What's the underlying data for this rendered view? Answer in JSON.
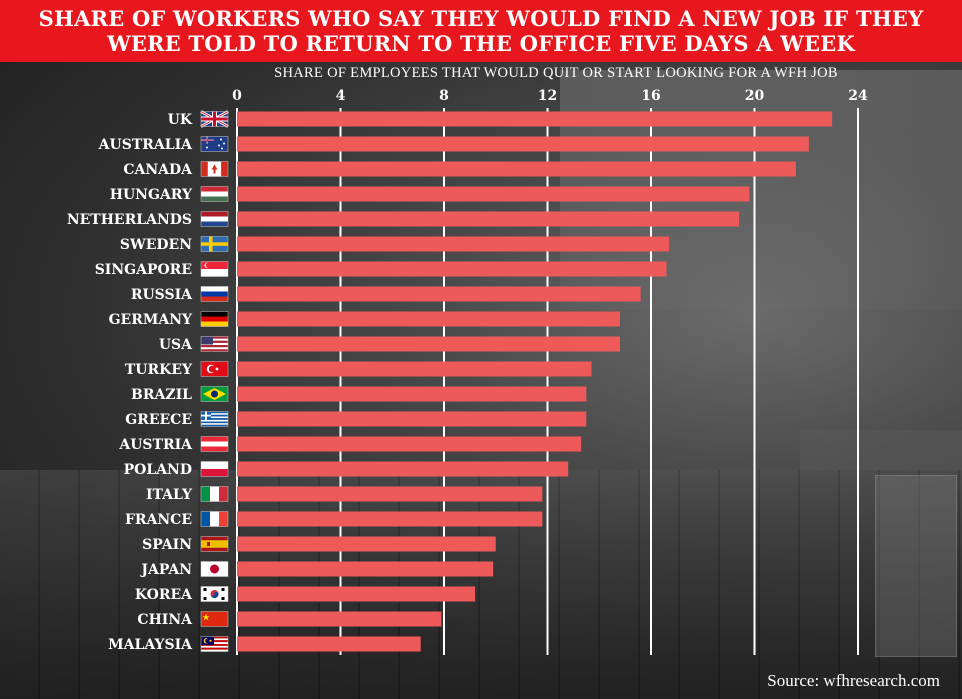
{
  "header": {
    "title": "SHARE OF WORKERS WHO SAY THEY WOULD FIND A NEW JOB IF THEY WERE TOLD TO RETURN TO THE OFFICE FIVE DAYS A WEEK"
  },
  "source": "Source: wfhresearch.com",
  "colors": {
    "banner": "#e8161d",
    "bar": "#ee5a5a",
    "text": "#ffffff",
    "grid": "#ffffff"
  },
  "chart_data": {
    "type": "bar",
    "orientation": "horizontal",
    "xlabel": "SHARE OF EMPLOYEES THAT WOULD QUIT OR START LOOKING FOR A WFH JOB",
    "ylabel": "",
    "xlim": [
      0,
      24
    ],
    "ticks": [
      "0",
      "4",
      "8",
      "12",
      "16",
      "20",
      "24"
    ],
    "grid": true,
    "categories": [
      "UK",
      "AUSTRALIA",
      "CANADA",
      "HUNGARY",
      "NETHERLANDS",
      "SWEDEN",
      "SINGAPORE",
      "RUSSIA",
      "GERMANY",
      "USA",
      "TURKEY",
      "BRAZIL",
      "GREECE",
      "AUSTRIA",
      "POLAND",
      "ITALY",
      "FRANCE",
      "SPAIN",
      "JAPAN",
      "KOREA",
      "CHINA",
      "MALAYSIA"
    ],
    "flags": [
      "uk-flag-icon",
      "australia-flag-icon",
      "canada-flag-icon",
      "hungary-flag-icon",
      "netherlands-flag-icon",
      "sweden-flag-icon",
      "singapore-flag-icon",
      "russia-flag-icon",
      "germany-flag-icon",
      "usa-flag-icon",
      "turkey-flag-icon",
      "brazil-flag-icon",
      "greece-flag-icon",
      "austria-flag-icon",
      "poland-flag-icon",
      "italy-flag-icon",
      "france-flag-icon",
      "spain-flag-icon",
      "japan-flag-icon",
      "korea-flag-icon",
      "china-flag-icon",
      "malaysia-flag-icon"
    ],
    "values": [
      23.0,
      22.1,
      21.6,
      19.8,
      19.4,
      16.7,
      16.6,
      15.6,
      14.8,
      14.8,
      13.7,
      13.5,
      13.5,
      13.3,
      12.8,
      11.8,
      11.8,
      10.0,
      9.9,
      9.2,
      7.9,
      7.1
    ]
  }
}
